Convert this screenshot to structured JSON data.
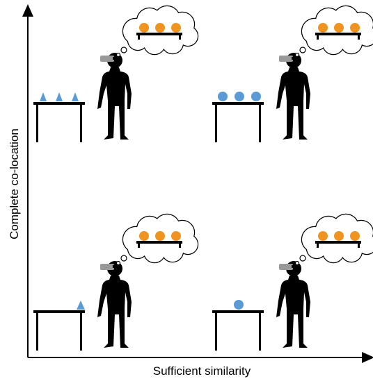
{
  "axes": {
    "y_label": "Complete co-location",
    "x_label": "Sufficient similarity"
  }
}
